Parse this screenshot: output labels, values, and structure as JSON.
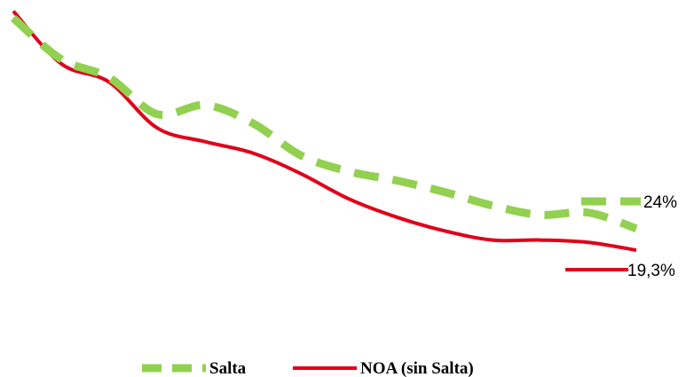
{
  "chart_data": {
    "type": "line",
    "x": [
      1,
      2,
      3,
      4,
      5,
      6,
      7,
      8,
      9,
      10,
      11,
      12,
      13,
      14
    ],
    "ylim": [
      10,
      72
    ],
    "grid": false,
    "legend_placement": "bottom",
    "series": [
      {
        "name": "Salta",
        "color": "#92D050",
        "dash": "dashed",
        "values": [
          70,
          61,
          57,
          49,
          51,
          47,
          40,
          36.5,
          34.5,
          32,
          29,
          27,
          27.5,
          24
        ],
        "end_label": "24%"
      },
      {
        "name": "NOA (sin Salta)",
        "color": "#E0001B",
        "dash": "solid",
        "values": [
          71.5,
          60,
          56,
          46,
          43,
          40.5,
          36,
          30.5,
          26.5,
          23.5,
          21.5,
          21.5,
          21,
          19.3
        ],
        "end_label": "19,3%"
      }
    ]
  }
}
